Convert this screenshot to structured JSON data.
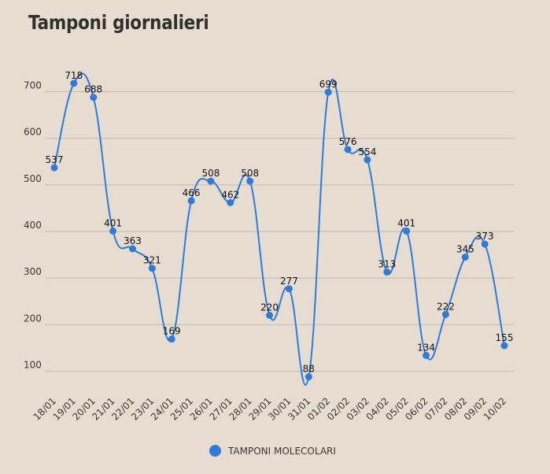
{
  "chart_data": {
    "type": "line",
    "title": "Tamponi giornalieri",
    "categories": [
      "18/01",
      "19/01",
      "20/01",
      "21/01",
      "22/01",
      "23/01",
      "24/01",
      "25/01",
      "26/01",
      "27/01",
      "28/01",
      "29/01",
      "30/01",
      "31/01",
      "01/02",
      "02/02",
      "03/02",
      "04/02",
      "05/02",
      "06/02",
      "07/02",
      "08/02",
      "09/02",
      "10/02"
    ],
    "series": [
      {
        "name": "TAMPONI MOLECOLARI",
        "color": "#2f7bd9",
        "values": [
          537,
          718,
          688,
          401,
          363,
          321,
          169,
          466,
          508,
          462,
          508,
          220,
          277,
          88,
          699,
          576,
          554,
          313,
          401,
          134,
          222,
          345,
          373,
          155
        ]
      }
    ],
    "yticks": [
      100,
      200,
      300,
      400,
      500,
      600,
      700
    ],
    "ylim": [
      40,
      760
    ],
    "grid": true,
    "legend_position": "bottom",
    "smooth": true,
    "data_labels": true
  }
}
